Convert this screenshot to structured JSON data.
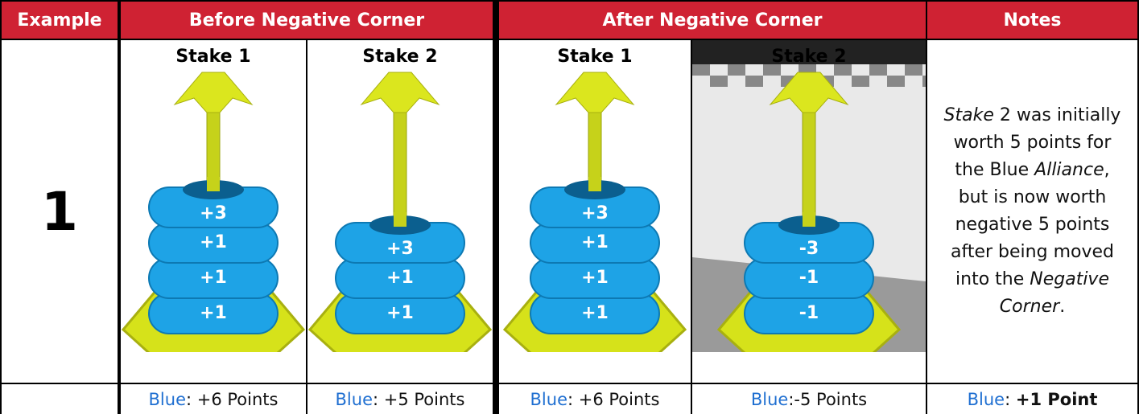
{
  "header": {
    "example": "Example",
    "before": "Before Negative Corner",
    "after": "After Negative Corner",
    "notes": "Notes"
  },
  "example_number": "1",
  "stakes": [
    {
      "title": "Stake 1",
      "rings": [
        "+3",
        "+1",
        "+1",
        "+1"
      ],
      "score": {
        "team": "Blue",
        "text": ": +6 Points"
      }
    },
    {
      "title": "Stake 2",
      "rings": [
        "+3",
        "+1",
        "+1"
      ],
      "score": {
        "team": "Blue",
        "text": ": +5 Points"
      }
    },
    {
      "title": "Stake 1",
      "rings": [
        "+3",
        "+1",
        "+1",
        "+1"
      ],
      "score": {
        "team": "Blue",
        "text": ": +6 Points"
      }
    },
    {
      "title": "Stake 2",
      "rings": [
        "-3",
        "-1",
        "-1"
      ],
      "score": {
        "team": "Blue",
        "text": ":-5 Points"
      }
    }
  ],
  "notes": [
    "Stake",
    " 2 was initially worth 5 points for the Blue ",
    "Alliance",
    ", but is now worth negative 5 points after being moved into the ",
    "Negative Corner",
    "."
  ],
  "total": {
    "team": "Blue",
    "sep": ": ",
    "text": "+1 Point"
  }
}
